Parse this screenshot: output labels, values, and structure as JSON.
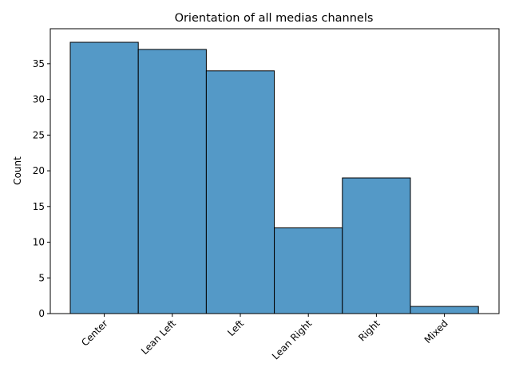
{
  "chart_data": {
    "type": "bar",
    "title": "Orientation of all medias channels",
    "xlabel": "",
    "ylabel": "Count",
    "categories": [
      "Center",
      "Lean Left",
      "Left",
      "Lean Right",
      "Right",
      "Mixed"
    ],
    "values": [
      38,
      37,
      34,
      12,
      19,
      1
    ],
    "ylim": [
      0,
      39.9
    ],
    "yticks": [
      0,
      5,
      10,
      15,
      20,
      25,
      30,
      35
    ],
    "bar_color": "#5499c7",
    "edge_color": "#000000",
    "grid": false,
    "legend": "none"
  }
}
